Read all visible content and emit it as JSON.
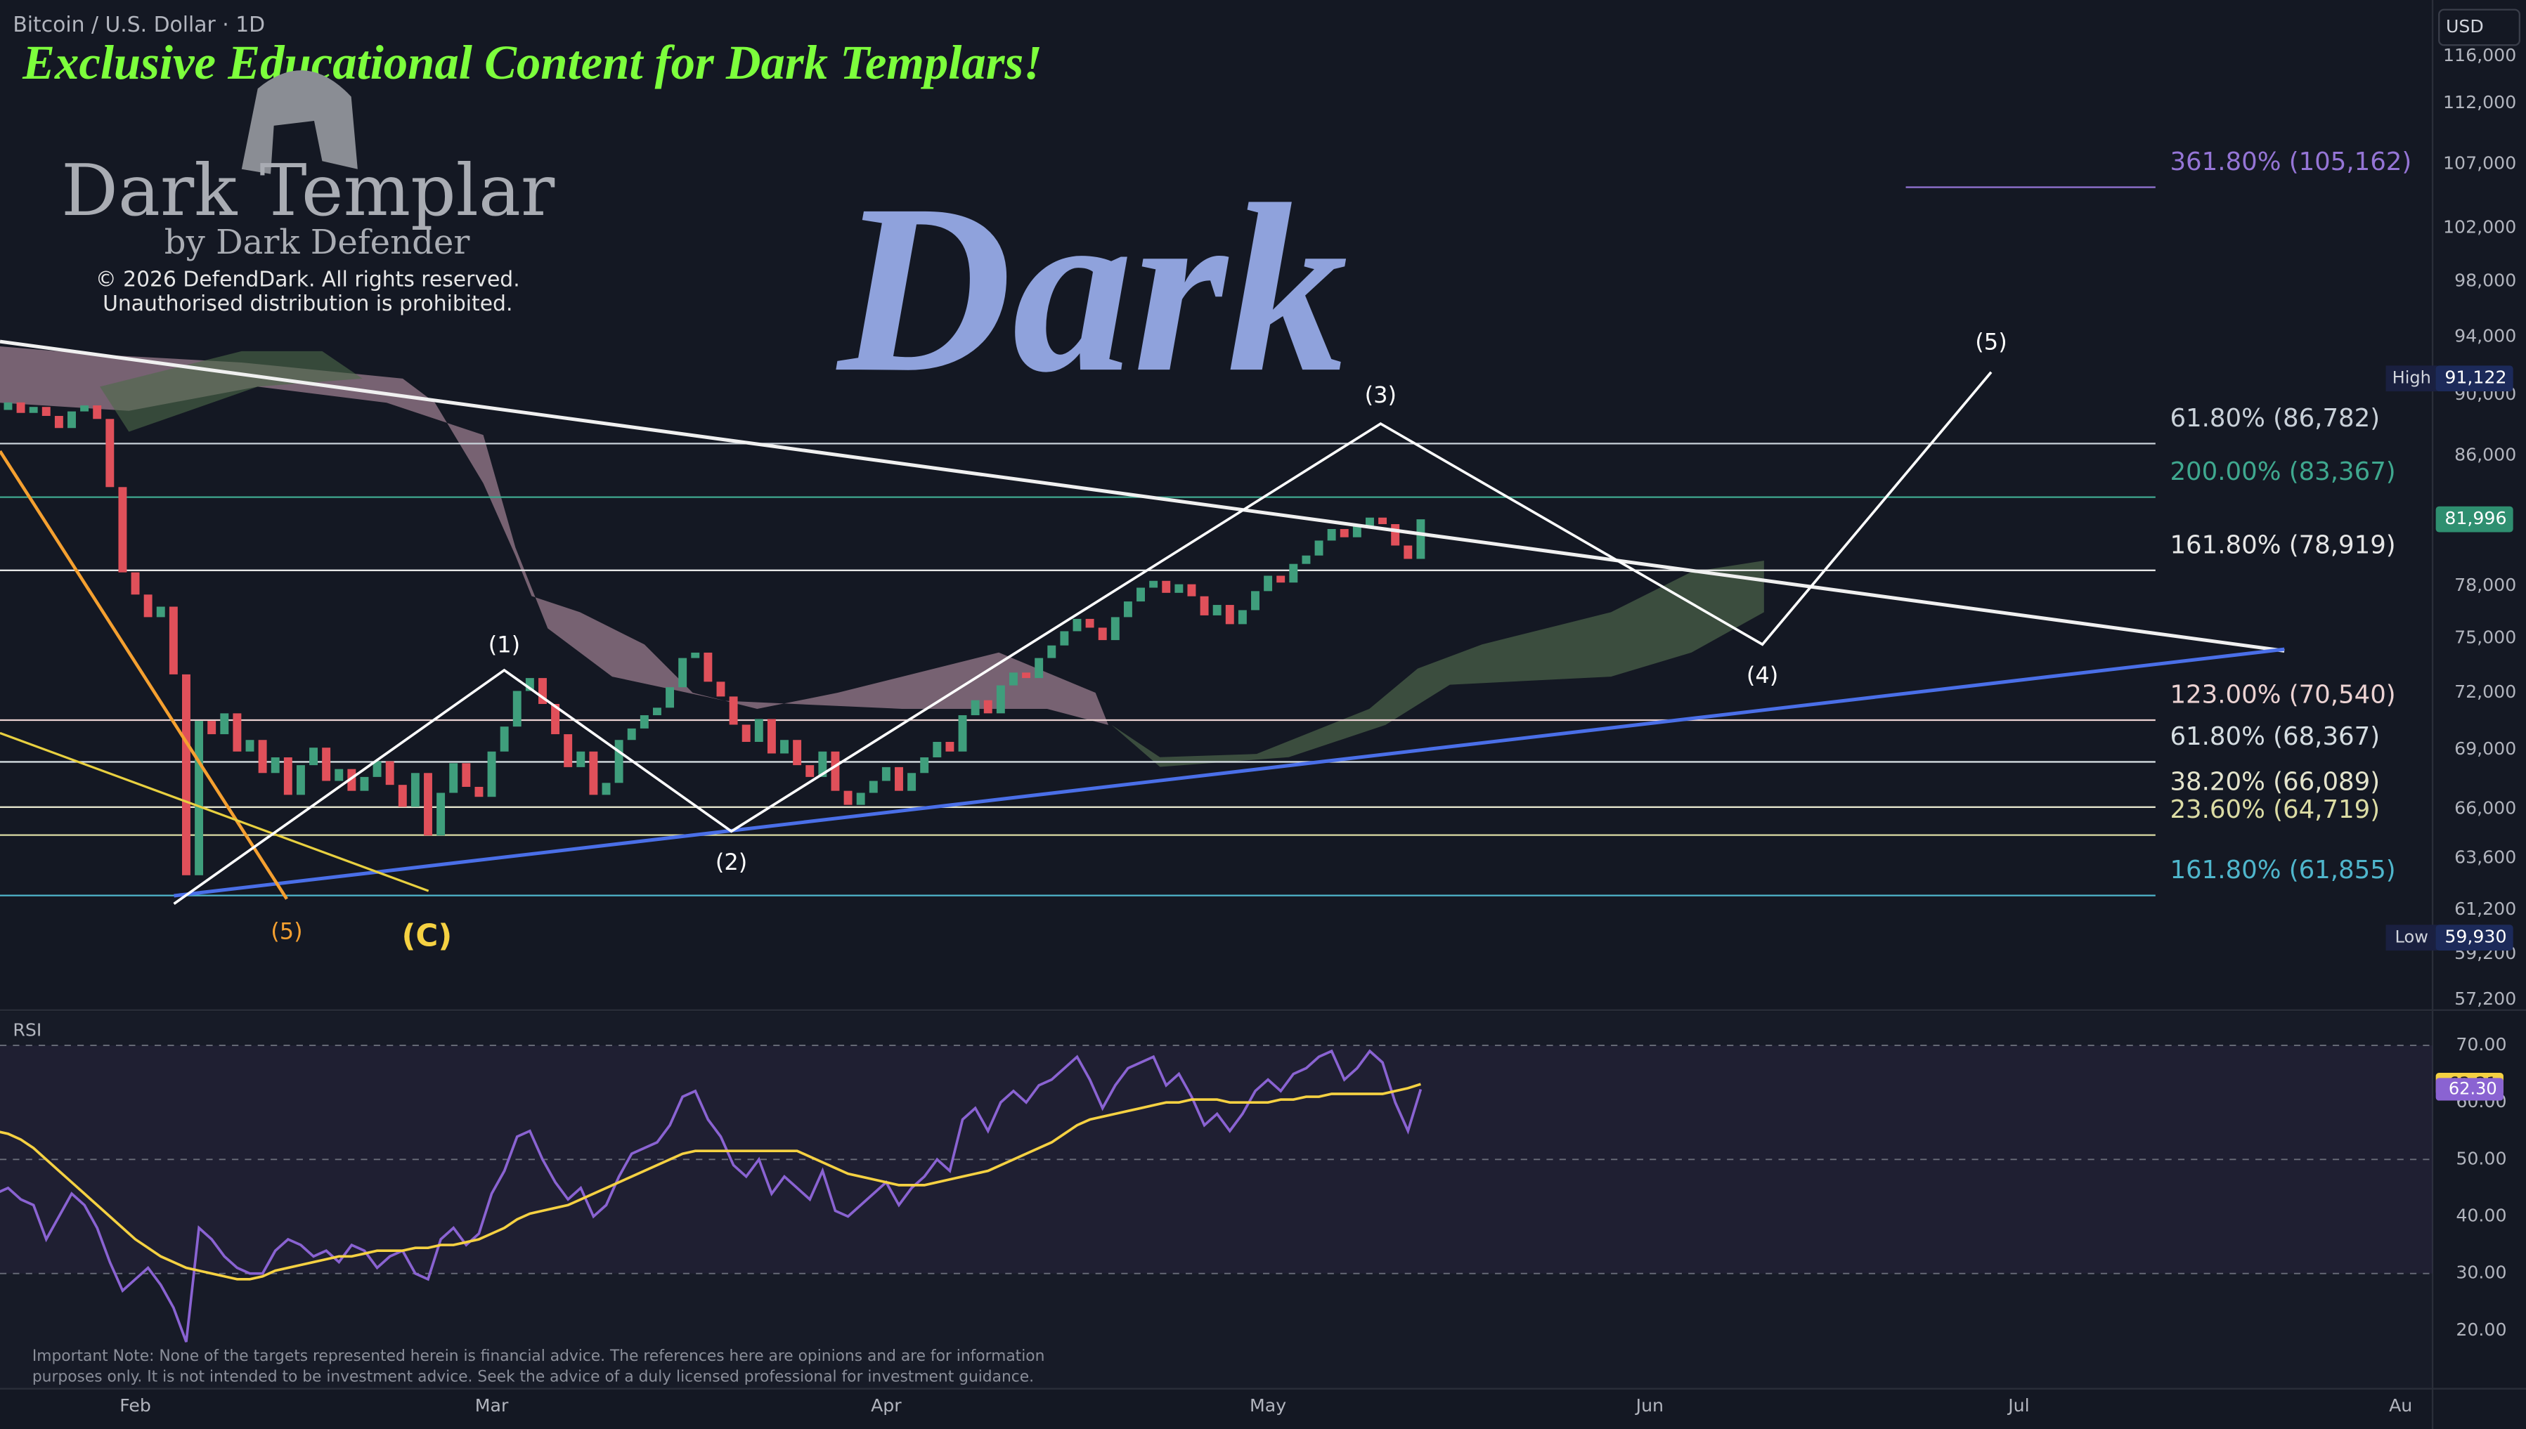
{
  "header": {
    "symbol": "Bitcoin / U.S. Dollar · 1D",
    "currency": "USD"
  },
  "branding": {
    "banner": "Exclusive Educational Content for Dark Templars!",
    "logo_title": "Dark Templar",
    "logo_subtitle": "by Dark Defender",
    "copyright": "© 2026 DefendDark. All rights reserved.",
    "distribution": "Unauthorised distribution is prohibited.",
    "watermark": "Dark"
  },
  "chart_data": {
    "type": "candlestick",
    "log_scale": true,
    "up_color": "#3f9e7c",
    "down_color": "#e0505a",
    "categories": [
      null,
      null,
      null,
      null,
      null,
      null,
      null,
      null,
      null,
      null,
      null,
      "Feb",
      null,
      null,
      null,
      null,
      null,
      null,
      null,
      null,
      null,
      null,
      null,
      null,
      null,
      null,
      null,
      null,
      null,
      null,
      null,
      null,
      null,
      null,
      null,
      null,
      null,
      null,
      null,
      "Mar",
      null,
      null,
      null,
      null,
      null,
      null,
      null,
      null,
      null,
      null,
      null,
      null,
      null,
      null,
      null,
      null,
      null,
      null,
      null,
      null,
      null,
      null,
      null,
      null,
      null,
      null,
      null,
      null,
      null,
      null,
      "Apr",
      null,
      null,
      null,
      null,
      null,
      null,
      null,
      null,
      null,
      null,
      null,
      null,
      null,
      null,
      null,
      null,
      null,
      null,
      null,
      null,
      null,
      null,
      null,
      null,
      null,
      null,
      null,
      null,
      null,
      "May",
      null,
      null,
      null,
      null,
      null,
      null,
      null,
      null,
      null,
      null,
      null,
      null,
      null,
      null,
      null,
      null,
      null,
      null,
      null,
      null,
      null,
      null,
      null,
      null,
      null,
      null,
      null,
      null,
      null,
      "Jun",
      null,
      null,
      null,
      null,
      null,
      null,
      null,
      null,
      null,
      null,
      null,
      null,
      null,
      null,
      null,
      null,
      null,
      null,
      null,
      null,
      null,
      null,
      null,
      null,
      null,
      null,
      null,
      null,
      "Jul",
      null,
      null,
      null,
      null,
      null,
      null,
      null,
      null,
      null,
      null,
      null,
      null,
      null,
      null,
      null,
      null,
      null,
      null,
      null,
      null,
      null,
      null,
      null,
      null,
      null,
      null,
      null,
      null,
      null,
      "Au"
    ],
    "values": [
      89000,
      89500,
      88800,
      89200,
      88600,
      87800,
      88900,
      89300,
      88400,
      84000,
      78800,
      77500,
      76200,
      76800,
      73000,
      62800,
      70500,
      69800,
      70900,
      68900,
      69500,
      67800,
      68600,
      66700,
      68200,
      69100,
      67400,
      68000,
      66900,
      67600,
      68400,
      67200,
      66100,
      67800,
      64700,
      66800,
      68300,
      67100,
      66600,
      68900,
      70200,
      72100,
      72800,
      71400,
      69800,
      68100,
      68900,
      66700,
      67300,
      69500,
      70100,
      70800,
      71200,
      72300,
      73900,
      74200,
      72600,
      71800,
      70300,
      69400,
      70600,
      68800,
      69500,
      68200,
      67600,
      68900,
      66900,
      66200,
      66800,
      67400,
      68100,
      66900,
      67800,
      68600,
      69400,
      68900,
      70800,
      71600,
      70900,
      72400,
      73100,
      72800,
      73900,
      74600,
      75400,
      76100,
      75600,
      74900,
      76200,
      77100,
      77900,
      78300,
      77600,
      78100,
      77400,
      76300,
      76900,
      75800,
      76600,
      77700,
      78600,
      78200,
      79300,
      79800,
      80700,
      81400,
      80900,
      81600,
      82100,
      81700,
      80400,
      79600,
      81996,
      null,
      null,
      null,
      null,
      null,
      null,
      null,
      null,
      null,
      null,
      null,
      null,
      null,
      null,
      null,
      null,
      null,
      null,
      null,
      null,
      null,
      null,
      null,
      null,
      null,
      null,
      null,
      null,
      null,
      null,
      null,
      null,
      null,
      null,
      null,
      null,
      null,
      null,
      null,
      null,
      null,
      null,
      null,
      null,
      null,
      null,
      null,
      null,
      null,
      null,
      null,
      null,
      null,
      null,
      null,
      null,
      null,
      null,
      null,
      null,
      null,
      null,
      null,
      null,
      null,
      null,
      null,
      null,
      null,
      null,
      null,
      null,
      null,
      null,
      null,
      null,
      null
    ],
    "ylim": [
      56900,
      121000
    ],
    "yticks": [
      {
        "value": 116000,
        "label": "116,000"
      },
      {
        "value": 112000,
        "label": "112,000"
      },
      {
        "value": 107000,
        "label": "107,000"
      },
      {
        "value": 102000,
        "label": "102,000"
      },
      {
        "value": 98000,
        "label": "98,000"
      },
      {
        "value": 94000,
        "label": "94,000"
      },
      {
        "value": 90000,
        "label": "90,000"
      },
      {
        "value": 86000,
        "label": "86,000"
      },
      {
        "value": 78000,
        "label": "78,000"
      },
      {
        "value": 75000,
        "label": "75,000"
      },
      {
        "value": 72000,
        "label": "72,000"
      },
      {
        "value": 69000,
        "label": "69,000"
      },
      {
        "value": 66000,
        "label": "66,000"
      },
      {
        "value": 63600,
        "label": "63,600"
      },
      {
        "value": 61200,
        "label": "61,200"
      },
      {
        "value": 59200,
        "label": "59,200"
      },
      {
        "value": 57200,
        "label": "57,200"
      }
    ],
    "last_price": {
      "value": 81996,
      "label": "81,996",
      "color": "#2f8f70"
    },
    "high": {
      "name": "High",
      "value": 91122,
      "label": "91,122"
    },
    "low": {
      "name": "Low",
      "value": 59930,
      "label": "59,930"
    },
    "levels": [
      {
        "label": "361.80% (105,162)",
        "value": 105162,
        "color": "#9575d6",
        "extent": "partial"
      },
      {
        "label": "61.80% (86,782)",
        "value": 86782,
        "color": "#c9d1d9",
        "extent": "full"
      },
      {
        "label": "200.00% (83,367)",
        "value": 83367,
        "color": "#3fa88f",
        "extent": "full"
      },
      {
        "label": "161.80% (78,919)",
        "value": 78919,
        "color": "#e6e6e6",
        "extent": "full"
      },
      {
        "label": "123.00% (70,540)",
        "value": 70540,
        "color": "#ecd2d2",
        "extent": "full"
      },
      {
        "label": "61.80% (68,367)",
        "value": 68367,
        "color": "#d5dde2",
        "extent": "full"
      },
      {
        "label": "38.20% (66,089)",
        "value": 66089,
        "color": "#e4e4cc",
        "extent": "full"
      },
      {
        "label": "23.60% (64,719)",
        "value": 64719,
        "color": "#dcdca4",
        "extent": "full"
      },
      {
        "label": "161.80% (61,855)",
        "value": 61855,
        "color": "#4fb6cc",
        "extent": "full"
      }
    ],
    "annotations": [
      "(1)",
      "(2)",
      "(3)",
      "(4)",
      "(5)",
      "(5)",
      "(C)"
    ],
    "indicator": {
      "type": "line",
      "title": "RSI",
      "ylim": [
        9.8,
        75.9
      ],
      "yticks": [
        {
          "value": 70,
          "label": "70.00"
        },
        {
          "value": 60,
          "label": "60.00"
        },
        {
          "value": 50,
          "label": "50.00"
        },
        {
          "value": 40,
          "label": "40.00"
        },
        {
          "value": 30,
          "label": "30.00"
        },
        {
          "value": 20,
          "label": "20.00"
        }
      ],
      "dashed_levels": [
        70,
        50,
        30
      ],
      "band": [
        30,
        70
      ],
      "series": [
        {
          "color": "#f5d142",
          "last_value_label": "63.21",
          "values": [
            55,
            54.5,
            53.5,
            52,
            50,
            48,
            46,
            44,
            42,
            40,
            38,
            36,
            34.5,
            33,
            32,
            31,
            30.5,
            30,
            29.5,
            29,
            29,
            29.5,
            30.5,
            31,
            31.5,
            32,
            32.5,
            33,
            33,
            33.5,
            34,
            34,
            34,
            34.5,
            34.5,
            35,
            35,
            35.5,
            36,
            37,
            38,
            39.5,
            40.5,
            41,
            41.5,
            42,
            43,
            44,
            45,
            46,
            47,
            48,
            49,
            50,
            51,
            51.5,
            51.5,
            51.5,
            51.5,
            51.5,
            51.5,
            51.5,
            51.5,
            51.5,
            50.5,
            49.5,
            48.5,
            47.5,
            47,
            46.5,
            46,
            45.5,
            45.5,
            45.5,
            46,
            46.5,
            47,
            47.5,
            48,
            49,
            50,
            51,
            52,
            53,
            54.5,
            56,
            57,
            57.5,
            58,
            58.5,
            59,
            59.5,
            60,
            60,
            60.5,
            60.5,
            60.5,
            60,
            60,
            60,
            60,
            60.5,
            60.5,
            61,
            61,
            61.5,
            61.5,
            61.5,
            61.5,
            61.5,
            62,
            62.5,
            63.21,
            null,
            null,
            null,
            null,
            null,
            null,
            null,
            null,
            null,
            null,
            null,
            null,
            null,
            null,
            null,
            null,
            null,
            null,
            null,
            null,
            null,
            null,
            null,
            null,
            null,
            null,
            null,
            null,
            null,
            null,
            null,
            null,
            null,
            null,
            null,
            null,
            null,
            null,
            null,
            null,
            null,
            null,
            null,
            null,
            null,
            null,
            null,
            null,
            null,
            null,
            null,
            null,
            null,
            null,
            null,
            null,
            null,
            null,
            null,
            null,
            null,
            null,
            null,
            null,
            null,
            null,
            null,
            null,
            null,
            null,
            null,
            null,
            null,
            null,
            null,
            null,
            null,
            null,
            null,
            null
          ]
        },
        {
          "color": "#8a63d2",
          "last_value_label": "62.30",
          "values": [
            44,
            45,
            43,
            42,
            36,
            40,
            44,
            42,
            38,
            32,
            27,
            29,
            31,
            28,
            24,
            18,
            38,
            36,
            33,
            31,
            30,
            30,
            34,
            36,
            35,
            33,
            34,
            32,
            35,
            34,
            31,
            33,
            34,
            30,
            29,
            36,
            38,
            35,
            37,
            44,
            48,
            54,
            55,
            50,
            46,
            43,
            45,
            40,
            42,
            47,
            51,
            52,
            53,
            56,
            61,
            62,
            57,
            54,
            49,
            47,
            50,
            44,
            47,
            45,
            43,
            48,
            41,
            40,
            42,
            44,
            46,
            42,
            45,
            47,
            50,
            48,
            57,
            59,
            55,
            60,
            62,
            60,
            63,
            64,
            66,
            68,
            64,
            59,
            63,
            66,
            67,
            68,
            63,
            65,
            61,
            56,
            58,
            55,
            58,
            62,
            64,
            62,
            65,
            66,
            68,
            69,
            64,
            66,
            69,
            67,
            60,
            55,
            62.3,
            null,
            null,
            null,
            null,
            null,
            null,
            null,
            null,
            null,
            null,
            null,
            null,
            null,
            null,
            null,
            null,
            null,
            null,
            null,
            null,
            null,
            null,
            null,
            null,
            null,
            null,
            null,
            null,
            null,
            null,
            null,
            null,
            null,
            null,
            null,
            null,
            null,
            null,
            null,
            null,
            null,
            null,
            null,
            null,
            null,
            null,
            null,
            null,
            null,
            null,
            null,
            null,
            null,
            null,
            null,
            null,
            null,
            null,
            null,
            null,
            null,
            null,
            null,
            null,
            null,
            null,
            null,
            null,
            null,
            null,
            null,
            null,
            null,
            null,
            null,
            null,
            null,
            null,
            null
          ]
        }
      ]
    },
    "note": [
      "Important Note: None of the targets represented herein is financial advice. The references here are opinions and are for information",
      "purposes only. It is not intended to be investment advice. Seek the advice of a duly licensed professional for investment guidance."
    ]
  }
}
